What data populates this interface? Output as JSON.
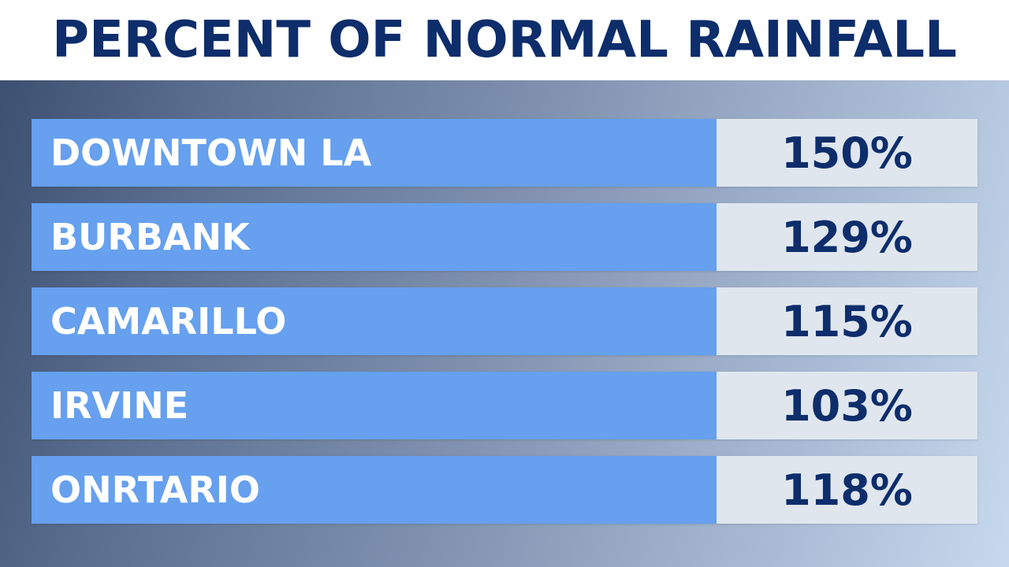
{
  "title": "PERCENT OF NORMAL RAINFALL",
  "colors": {
    "title_text": "#0d2d6b",
    "city_bar": "#66a0ee",
    "value_cell": "#dfe6ee",
    "value_text": "#0d2d6b",
    "city_text": "#ffffff"
  },
  "rows": [
    {
      "city": "DOWNTOWN LA",
      "value": "150%"
    },
    {
      "city": "BURBANK",
      "value": "129%"
    },
    {
      "city": "CAMARILLO",
      "value": "115%"
    },
    {
      "city": "IRVINE",
      "value": "103%"
    },
    {
      "city": "ONRTARIO",
      "value": "118%"
    }
  ]
}
